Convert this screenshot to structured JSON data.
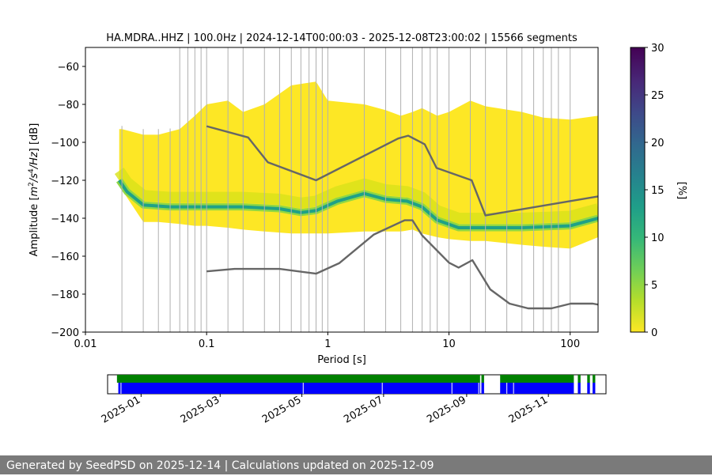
{
  "chart_data": [
    {
      "type": "heatmap",
      "title": "HA.MDRA..HHZ | 100.0Hz | 2024-12-14T00:00:03 - 2025-12-08T23:00:02 | 15566 segments",
      "xlabel": "Period [s]",
      "ylabel": "Amplitude [m²/s⁴/Hz] [dB]",
      "xscale": "log",
      "xlim": [
        0.01,
        170
      ],
      "ylim": [
        -200,
        -50
      ],
      "x_ticks": [
        {
          "value": 0.01,
          "label": "0.01"
        },
        {
          "value": 0.1,
          "label": "0.1"
        },
        {
          "value": 1,
          "label": "1"
        },
        {
          "value": 10,
          "label": "10"
        },
        {
          "value": 100,
          "label": "100"
        }
      ],
      "y_ticks": [
        {
          "value": -60,
          "label": "−60"
        },
        {
          "value": -80,
          "label": "−80"
        },
        {
          "value": -100,
          "label": "−100"
        },
        {
          "value": -120,
          "label": "−120"
        },
        {
          "value": -140,
          "label": "−140"
        },
        {
          "value": -160,
          "label": "−160"
        },
        {
          "value": -180,
          "label": "−180"
        },
        {
          "value": -200,
          "label": "−200"
        }
      ],
      "vertical_grid_periods": [
        0.02,
        0.03,
        0.04,
        0.05,
        0.06,
        0.07,
        0.08,
        0.09,
        0.1,
        0.15,
        0.2,
        0.3,
        0.4,
        0.5,
        0.6,
        0.7,
        0.8,
        0.9,
        1,
        2,
        3,
        4,
        5,
        6,
        7,
        8,
        10,
        15,
        20,
        30,
        40,
        50,
        60,
        70,
        80,
        100
      ],
      "density_envelope": {
        "period": [
          0.019,
          0.02,
          0.03,
          0.04,
          0.06,
          0.08,
          0.1,
          0.15,
          0.2,
          0.3,
          0.5,
          0.8,
          1,
          2,
          3,
          4,
          5,
          6,
          8,
          10,
          15,
          20,
          40,
          60,
          100,
          170
        ],
        "upper_db": [
          -93,
          -93,
          -96,
          -96,
          -93,
          -86,
          -80,
          -78,
          -84,
          -80,
          -70,
          -68,
          -78,
          -80,
          -83,
          -86,
          -84,
          -82,
          -86,
          -84,
          -78,
          -81,
          -84,
          -87,
          -88,
          -86
        ],
        "lower_db": [
          -122,
          -125,
          -142,
          -142,
          -143,
          -144,
          -144,
          -145,
          -146,
          -147,
          -148,
          -148,
          -148,
          -147,
          -147,
          -147,
          -146,
          -148,
          -150,
          -151,
          -152,
          -152,
          -154,
          -155,
          -156,
          -150
        ]
      },
      "mode_curve": {
        "period": [
          0.019,
          0.022,
          0.03,
          0.05,
          0.1,
          0.2,
          0.4,
          0.6,
          0.8,
          1.2,
          2,
          3,
          4.5,
          6,
          8,
          12,
          20,
          40,
          100,
          170
        ],
        "db": [
          -120,
          -126,
          -133,
          -134,
          -134,
          -134,
          -135,
          -137,
          -136,
          -131,
          -127,
          -130,
          -131,
          -134,
          -141,
          -145,
          -145,
          -145,
          -144,
          -140
        ]
      },
      "nlnm_nhnm_lines": [
        {
          "period": [
            0.1,
            0.22,
            0.32,
            0.8,
            3.8,
            4.6,
            6.3,
            7.9,
            15.4,
            20,
            170
          ],
          "db": [
            -91.5,
            -97.4,
            -110.5,
            -120,
            -98,
            -96.5,
            -101,
            -113.5,
            -120,
            -138.5,
            -128.5
          ]
        },
        {
          "period": [
            0.1,
            0.17,
            0.4,
            0.8,
            1.24,
            2.4,
            4.3,
            5,
            6,
            10,
            12,
            15.6,
            21.9,
            31.6,
            45,
            70,
            101,
            154,
            170
          ],
          "db": [
            -168,
            -166.7,
            -166.7,
            -169.2,
            -163.7,
            -148.6,
            -141.1,
            -141.1,
            -149,
            -163.4,
            -166,
            -162.1,
            -177.5,
            -185,
            -187.5,
            -187.5,
            -185,
            -185,
            -185.5
          ]
        }
      ],
      "colorbar": {
        "label": "[%]",
        "range": [
          0,
          30
        ],
        "ticks": [
          {
            "value": 0,
            "label": "0"
          },
          {
            "value": 5,
            "label": "5"
          },
          {
            "value": 10,
            "label": "10"
          },
          {
            "value": 15,
            "label": "15"
          },
          {
            "value": 20,
            "label": "20"
          },
          {
            "value": 25,
            "label": "25"
          },
          {
            "value": 30,
            "label": "30"
          }
        ],
        "colormap": [
          "#fde725",
          "#b5de2b",
          "#6ece58",
          "#35b779",
          "#1f9e89",
          "#26828e",
          "#31688e",
          "#3e4989",
          "#482878",
          "#440154"
        ]
      },
      "colors": {
        "mode_band": "#1fa187",
        "nlnm_nhnm": "#666666",
        "light": "#fde725"
      }
    },
    {
      "type": "timeline",
      "x_ticks": [
        {
          "date": "2025-01-01",
          "label": "2025-01"
        },
        {
          "date": "2025-03-01",
          "label": "2025-03"
        },
        {
          "date": "2025-05-01",
          "label": "2025-05"
        },
        {
          "date": "2025-07-01",
          "label": "2025-07"
        },
        {
          "date": "2025-09-01",
          "label": "2025-09"
        },
        {
          "date": "2025-11-01",
          "label": "2025-11"
        }
      ],
      "range": [
        "2024-12-07",
        "2025-12-14"
      ],
      "green_intervals": [
        [
          "2024-12-14",
          "2025-09-11"
        ],
        [
          "2025-09-12",
          "2025-09-14"
        ],
        [
          "2025-09-26",
          "2025-11-20"
        ],
        [
          "2025-11-23",
          "2025-11-25"
        ],
        [
          "2025-11-30",
          "2025-12-02"
        ],
        [
          "2025-12-04",
          "2025-12-06"
        ]
      ],
      "blue_intervals": [
        [
          "2024-12-15",
          "2025-09-11"
        ],
        [
          "2025-09-12",
          "2025-09-14"
        ],
        [
          "2025-09-26",
          "2025-11-20"
        ],
        [
          "2025-11-23",
          "2025-11-25"
        ],
        [
          "2025-11-30",
          "2025-12-02"
        ],
        [
          "2025-12-04",
          "2025-12-06"
        ]
      ],
      "blue_gaps": [
        "2024-12-17",
        "2025-05-02",
        "2025-06-30",
        "2025-08-21",
        "2025-09-10",
        "2025-10-01",
        "2025-10-06"
      ],
      "colors": {
        "green": "#008000",
        "blue": "#0000ff"
      }
    }
  ],
  "footer": {
    "text": "Generated by SeedPSD on 2025-12-14 | Calculations updated on 2025-12-09"
  }
}
